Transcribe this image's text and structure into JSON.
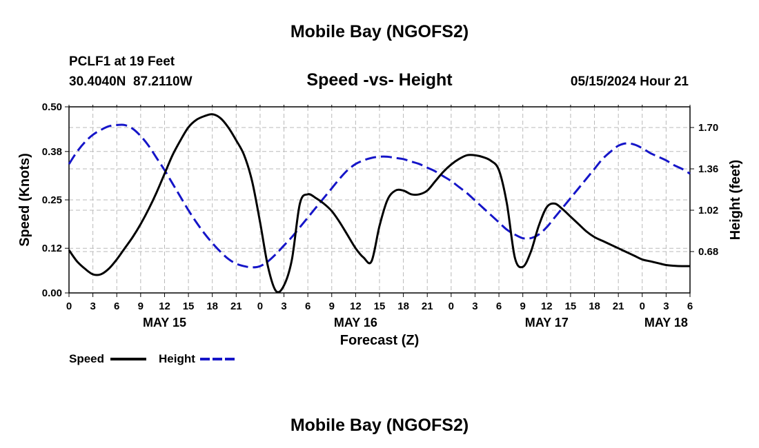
{
  "chart_data": {
    "type": "line",
    "title": "Mobile Bay (NGOFS2)",
    "subtitle": "Speed -vs- Height",
    "station": "PCLF1 at 19 Feet",
    "location": "30.4040N  87.2110W",
    "datetime": "05/15/2024 Hour 21",
    "footer_title": "Mobile Bay (NGOFS2)",
    "xlabel": "Forecast (Z)",
    "ylabel_left": "Speed (Knots)",
    "ylabel_right": "Height (feet)",
    "x_range_hours": [
      0,
      78
    ],
    "x_tick_step_hours": 3,
    "x_tick_labels": [
      "0",
      "3",
      "6",
      "9",
      "12",
      "15",
      "18",
      "21",
      "0",
      "3",
      "6",
      "9",
      "12",
      "15",
      "18",
      "21",
      "0",
      "3",
      "6",
      "9",
      "12",
      "15",
      "18",
      "21",
      "0",
      "3",
      "6"
    ],
    "day_labels": [
      {
        "label": "MAY 15",
        "hour": 12
      },
      {
        "label": "MAY 16",
        "hour": 36
      },
      {
        "label": "MAY 17",
        "hour": 60
      },
      {
        "label": "MAY 18",
        "hour": 75
      }
    ],
    "ylim_left": [
      0,
      0.5
    ],
    "y_ticks_left": [
      "0.00",
      "0.12",
      "0.25",
      "0.38",
      "0.50"
    ],
    "ylim_right": [
      0.34,
      1.87
    ],
    "y_ticks_right": [
      {
        "value": 0.68,
        "label": "0.68"
      },
      {
        "value": 1.02,
        "label": "1.02"
      },
      {
        "value": 1.36,
        "label": "1.36"
      },
      {
        "value": 1.7,
        "label": "1.70"
      }
    ],
    "grid": true,
    "legend": [
      {
        "name": "Speed",
        "color": "#000000",
        "style": "solid"
      },
      {
        "name": "Height",
        "color": "#1515c8",
        "style": "dashed"
      }
    ],
    "series": [
      {
        "name": "Speed",
        "axis": "left",
        "color": "#000000",
        "x": [
          0,
          1,
          2,
          3,
          4,
          5,
          6,
          7,
          8,
          9,
          10,
          11,
          12,
          13,
          14,
          15,
          16,
          17,
          18,
          19,
          20,
          21,
          22,
          23,
          24,
          25,
          26,
          27,
          28,
          29,
          30,
          31,
          32,
          33,
          34,
          35,
          36,
          37,
          38,
          39,
          40,
          41,
          42,
          43,
          44,
          45,
          46,
          47,
          48,
          49,
          50,
          51,
          52,
          53,
          54,
          55,
          56,
          57,
          58,
          59,
          60,
          61,
          62,
          63,
          64,
          65,
          66,
          67,
          68,
          69,
          70,
          71,
          72,
          73,
          74,
          75,
          76,
          77,
          78
        ],
        "values": [
          0.115,
          0.085,
          0.065,
          0.05,
          0.05,
          0.065,
          0.09,
          0.12,
          0.15,
          0.185,
          0.225,
          0.27,
          0.32,
          0.37,
          0.41,
          0.445,
          0.465,
          0.475,
          0.48,
          0.47,
          0.445,
          0.41,
          0.37,
          0.3,
          0.19,
          0.07,
          0.005,
          0.02,
          0.09,
          0.24,
          0.265,
          0.255,
          0.24,
          0.22,
          0.19,
          0.155,
          0.12,
          0.095,
          0.085,
          0.18,
          0.25,
          0.275,
          0.275,
          0.265,
          0.265,
          0.275,
          0.3,
          0.325,
          0.345,
          0.36,
          0.37,
          0.37,
          0.365,
          0.355,
          0.33,
          0.24,
          0.095,
          0.07,
          0.11,
          0.18,
          0.23,
          0.24,
          0.225,
          0.205,
          0.185,
          0.165,
          0.15,
          0.14,
          0.13,
          0.12,
          0.11,
          0.1,
          0.09,
          0.085,
          0.08,
          0.075,
          0.073,
          0.072,
          0.072
        ]
      },
      {
        "name": "Height",
        "axis": "right",
        "color": "#1515c8",
        "x": [
          0,
          1,
          2,
          3,
          4,
          5,
          6,
          7,
          8,
          9,
          10,
          11,
          12,
          13,
          14,
          15,
          16,
          17,
          18,
          19,
          20,
          21,
          22,
          23,
          24,
          25,
          26,
          27,
          28,
          29,
          30,
          31,
          32,
          33,
          34,
          35,
          36,
          37,
          38,
          39,
          40,
          41,
          42,
          43,
          44,
          45,
          46,
          47,
          48,
          49,
          50,
          51,
          52,
          53,
          54,
          55,
          56,
          57,
          58,
          59,
          60,
          61,
          62,
          63,
          64,
          65,
          66,
          67,
          68,
          69,
          70,
          71,
          72,
          73,
          74,
          75,
          76,
          77,
          78
        ],
        "values": [
          1.4,
          1.5,
          1.58,
          1.64,
          1.68,
          1.71,
          1.72,
          1.72,
          1.69,
          1.63,
          1.55,
          1.45,
          1.35,
          1.24,
          1.13,
          1.02,
          0.92,
          0.83,
          0.75,
          0.68,
          0.62,
          0.58,
          0.56,
          0.55,
          0.56,
          0.6,
          0.66,
          0.73,
          0.8,
          0.88,
          0.96,
          1.04,
          1.12,
          1.2,
          1.28,
          1.35,
          1.4,
          1.43,
          1.45,
          1.46,
          1.46,
          1.45,
          1.44,
          1.42,
          1.4,
          1.37,
          1.34,
          1.3,
          1.26,
          1.21,
          1.16,
          1.1,
          1.04,
          0.98,
          0.92,
          0.86,
          0.82,
          0.79,
          0.79,
          0.82,
          0.88,
          0.96,
          1.04,
          1.12,
          1.2,
          1.28,
          1.36,
          1.44,
          1.5,
          1.55,
          1.57,
          1.56,
          1.53,
          1.49,
          1.46,
          1.43,
          1.39,
          1.36,
          1.32
        ]
      }
    ]
  }
}
